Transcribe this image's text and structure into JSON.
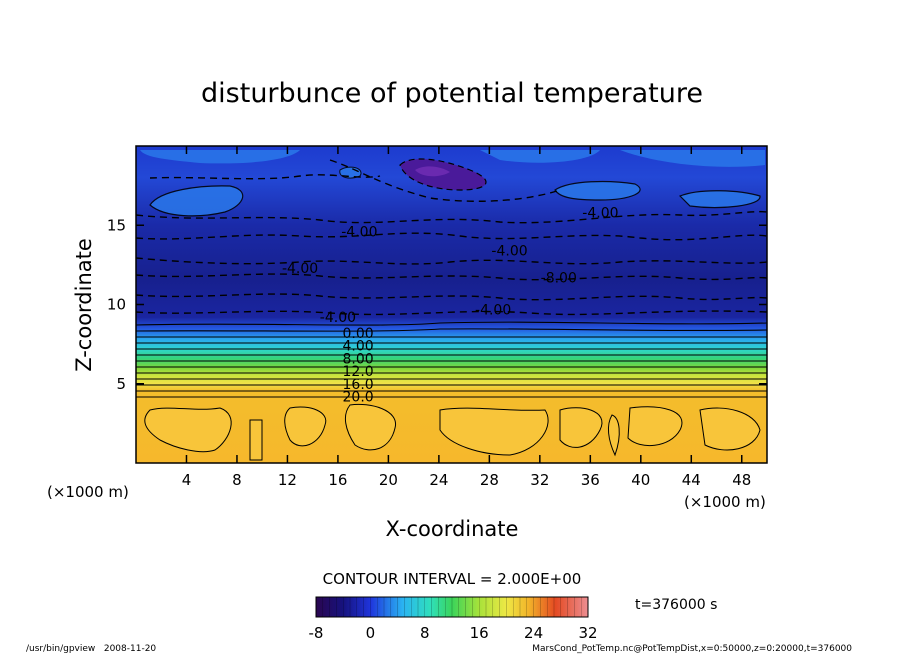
{
  "chart_data": {
    "type": "heatmap",
    "title": "disturbunce of potential temperature",
    "xlabel": "X-coordinate",
    "ylabel": "Z-coordinate",
    "x_unit_left": "(×1000 m)",
    "x_unit_right": "(×1000 m)",
    "xlim": [
      0,
      50
    ],
    "ylim": [
      0,
      20
    ],
    "x_ticks": [
      4,
      8,
      12,
      16,
      20,
      24,
      28,
      32,
      36,
      40,
      44,
      48
    ],
    "y_ticks": [
      5,
      10,
      15
    ],
    "contour_labels": [
      {
        "text": "-4.00",
        "x": 17.7,
        "z": 14.6
      },
      {
        "text": "-4.00",
        "x": 13.0,
        "z": 12.3
      },
      {
        "text": "-4.00",
        "x": 36.8,
        "z": 15.8
      },
      {
        "text": "-4.00",
        "x": 29.6,
        "z": 13.4
      },
      {
        "text": "-8.00",
        "x": 33.5,
        "z": 11.7
      },
      {
        "text": "-4.00",
        "x": 28.3,
        "z": 9.7
      },
      {
        "text": "-4.00",
        "x": 16.0,
        "z": 9.2
      },
      {
        "text": "0.00",
        "x": 17.6,
        "z": 8.2
      },
      {
        "text": "4.00",
        "x": 17.6,
        "z": 7.4
      },
      {
        "text": "8.00",
        "x": 17.6,
        "z": 6.6
      },
      {
        "text": "12.0",
        "x": 17.6,
        "z": 5.8
      },
      {
        "text": "16.0",
        "x": 17.6,
        "z": 5.0
      },
      {
        "text": "20.0",
        "x": 17.6,
        "z": 4.2
      }
    ],
    "colorbar": {
      "label": "CONTOUR INTERVAL = 2.000E+00",
      "min": -8,
      "max": 32,
      "ticks": [
        "-8",
        "0",
        "8",
        "16",
        "24",
        "32"
      ]
    },
    "time_label": "t=376000 s"
  },
  "footer": {
    "left": "/usr/bin/gpview   2008-11-20",
    "right": "MarsCond_PotTemp.nc@PotTempDist,x=0:50000,z=0:20000,t=376000"
  }
}
